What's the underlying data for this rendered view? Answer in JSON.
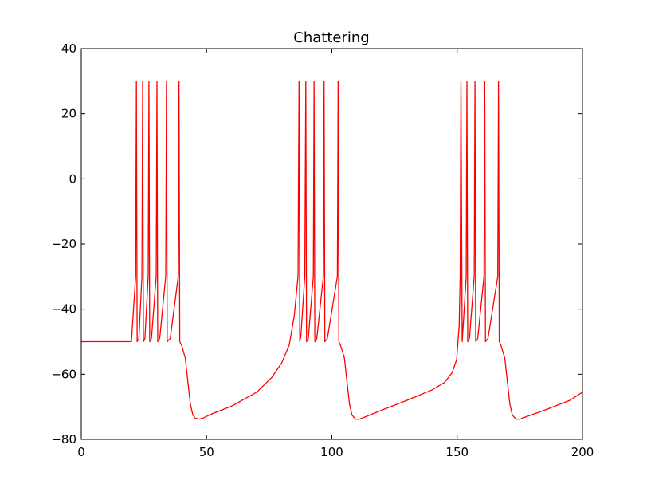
{
  "chart_data": {
    "type": "line",
    "title": "Chattering",
    "xlabel": "",
    "ylabel": "",
    "xlim": [
      0,
      200
    ],
    "ylim": [
      -80,
      40
    ],
    "xticks": [
      0,
      50,
      100,
      150,
      200
    ],
    "yticks": [
      -80,
      -60,
      -40,
      -20,
      0,
      20,
      40
    ],
    "xtick_labels": [
      "0",
      "50",
      "100",
      "150",
      "200"
    ],
    "ytick_labels": [
      "−80",
      "−60",
      "−40",
      "−20",
      "0",
      "20",
      "40"
    ],
    "grid": false,
    "legend": "none",
    "series": [
      {
        "color": "#ff0000",
        "x": [
          0,
          20,
          21.7,
          22.0,
          22.3,
          23.0,
          24.2,
          24.5,
          24.8,
          25.4,
          26.7,
          27.0,
          27.3,
          28.0,
          29.9,
          30.2,
          30.5,
          31.3,
          33.7,
          34.0,
          34.3,
          35.5,
          38.7,
          39.0,
          39.3,
          40,
          41.5,
          42.5,
          43.5,
          44.5,
          45.5,
          47,
          48.5,
          52,
          60,
          70,
          76,
          80,
          83,
          85,
          86.5,
          86.9,
          87.2,
          87.6,
          89.2,
          89.6,
          89.9,
          90.6,
          92.6,
          92.9,
          93.2,
          94,
          96.6,
          96.9,
          97.2,
          98.2,
          102.2,
          102.5,
          102.8,
          103.4,
          105,
          106,
          107,
          108,
          109.5,
          111,
          113,
          120,
          130,
          140,
          145,
          148,
          149.8,
          150.8,
          151.2,
          151.5,
          152,
          153.6,
          153.9,
          154.2,
          154.9,
          156.8,
          157.1,
          157.4,
          158.2,
          160.7,
          161.0,
          161.3,
          162.3,
          166.2,
          166.5,
          166.8,
          167.4,
          169,
          170,
          171,
          172,
          173.5,
          175,
          177,
          185,
          195,
          200
        ],
        "y": [
          -50,
          -50,
          -30,
          30,
          -50,
          -49,
          -30,
          30,
          -50,
          -49,
          -30,
          30,
          -50,
          -49,
          -30,
          30,
          -50,
          -49,
          -30,
          30,
          -50,
          -49,
          -30,
          30,
          -50,
          -51,
          -55,
          -62,
          -69,
          -72.5,
          -73.5,
          -73.8,
          -73.5,
          -72.2,
          -69.8,
          -65.5,
          -61,
          -56.5,
          -51,
          -42,
          -30,
          30,
          -50,
          -48.5,
          -30,
          30,
          -50,
          -49,
          -30,
          30,
          -50,
          -49,
          -30,
          30,
          -50,
          -49,
          -30,
          30,
          -50,
          -51,
          -55,
          -62,
          -69,
          -72.5,
          -73.8,
          -73.8,
          -73.2,
          -71,
          -68,
          -64.8,
          -62.5,
          -59.5,
          -55.5,
          -45,
          -30,
          30,
          -50,
          -30,
          30,
          -50,
          -49,
          -30,
          30,
          -50,
          -49,
          -30,
          30,
          -50,
          -49,
          -30,
          30,
          -50,
          -51,
          -55,
          -62,
          -69,
          -72.5,
          -73.8,
          -73.8,
          -73.2,
          -71,
          -68,
          -65.5
        ]
      }
    ]
  }
}
